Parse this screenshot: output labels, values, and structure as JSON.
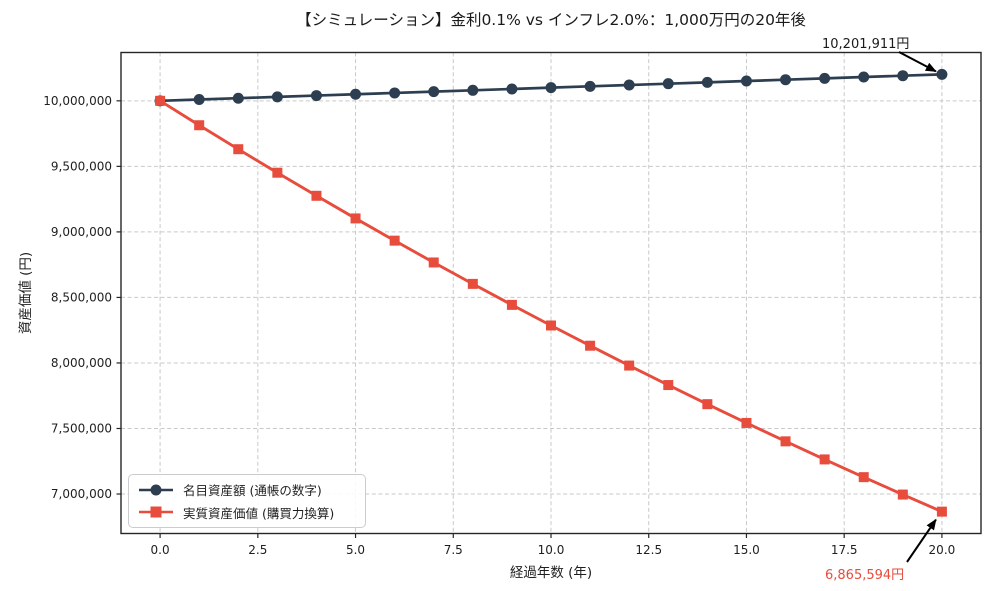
{
  "chart_data": {
    "type": "line",
    "title": "【シミュレーション】金利0.1% vs インフレ2.0%：1,000万円の20年後",
    "xlabel": "経過年数 (年)",
    "ylabel": "資産価値 (円)",
    "x": [
      0,
      1,
      2,
      3,
      4,
      5,
      6,
      7,
      8,
      9,
      10,
      11,
      12,
      13,
      14,
      15,
      16,
      17,
      18,
      19,
      20
    ],
    "series": [
      {
        "name": "名目資産額 (通帳の数字)",
        "color": "#2c3e50",
        "marker": "circle",
        "values": [
          10000000,
          10010000,
          10020010,
          10030030,
          10040060,
          10050100,
          10060150,
          10070210,
          10080281,
          10090361,
          10100451,
          10110552,
          10120662,
          10130783,
          10140914,
          10151055,
          10161206,
          10171367,
          10181538,
          10191720,
          10201911
        ]
      },
      {
        "name": "実質資産価値 (購買力換算)",
        "color": "#e74c3c",
        "marker": "square",
        "values": [
          10000000,
          9813725,
          9630921,
          9451522,
          9275464,
          9102686,
          8933126,
          8766724,
          8603422,
          8443161,
          8285886,
          8131541,
          7980070,
          7831422,
          7685543,
          7542381,
          7401886,
          7264008,
          7128697,
          6995907,
          6865594
        ]
      }
    ],
    "xlim": [
      -1,
      21
    ],
    "ylim": [
      6698779,
      10368727
    ],
    "xticks": {
      "values": [
        0,
        2.5,
        5,
        7.5,
        10,
        12.5,
        15,
        17.5,
        20
      ],
      "labels": [
        "0.0",
        "2.5",
        "5.0",
        "7.5",
        "10.0",
        "12.5",
        "15.0",
        "17.5",
        "20.0"
      ]
    },
    "yticks": {
      "values": [
        7000000,
        7500000,
        8000000,
        8500000,
        9000000,
        9500000,
        10000000
      ],
      "labels": [
        "7,000,000",
        "7,500,000",
        "8,000,000",
        "8,500,000",
        "9,000,000",
        "9,500,000",
        "10,000,000"
      ]
    },
    "grid": true,
    "legend_position": "lower left",
    "annotations": [
      {
        "text": "10,201,911円",
        "x": 20,
        "y": 10201911,
        "color": "#1a1a1a"
      },
      {
        "text": "6,865,594円",
        "x": 20,
        "y": 6865594,
        "color": "#e74c3c"
      }
    ]
  }
}
